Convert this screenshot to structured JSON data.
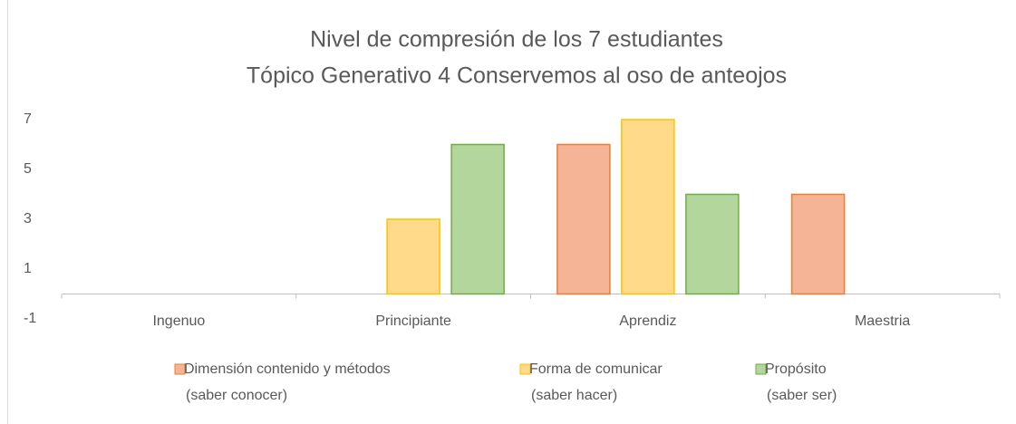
{
  "chart_data": {
    "type": "bar",
    "title": [
      "Nivel de compresión de los 7 estudiantes",
      "Tópico Generativo 4 Conservemos al oso de anteojos"
    ],
    "categories": [
      "Ingenuo",
      "Principiante",
      "Aprendiz",
      "Maestria"
    ],
    "series": [
      {
        "name": [
          "Dimensión contenido y métodos",
          "(saber conocer)"
        ],
        "color": "#f6b497",
        "edgecolor": "#ed7d31",
        "values": [
          0,
          0,
          6,
          4
        ]
      },
      {
        "name": [
          "Forma de comunicar",
          "(saber hacer)"
        ],
        "color": "#ffda8a",
        "edgecolor": "#ffc000",
        "values": [
          0,
          3,
          7,
          0
        ]
      },
      {
        "name": [
          "Propósito",
          "(saber ser)"
        ],
        "color": "#b2d69c",
        "edgecolor": "#70ad47",
        "values": [
          0,
          6,
          4,
          0
        ]
      }
    ],
    "ylim": [
      -1,
      7
    ],
    "yticks": [
      -1,
      1,
      3,
      5,
      7
    ],
    "grid": false
  }
}
